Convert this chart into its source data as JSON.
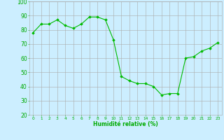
{
  "x": [
    0,
    1,
    2,
    3,
    4,
    5,
    6,
    7,
    8,
    9,
    10,
    11,
    12,
    13,
    14,
    15,
    16,
    17,
    18,
    19,
    20,
    21,
    22,
    23
  ],
  "y": [
    78,
    84,
    84,
    87,
    83,
    81,
    84,
    89,
    89,
    87,
    73,
    47,
    44,
    42,
    42,
    40,
    34,
    35,
    35,
    60,
    61,
    65,
    67,
    71
  ],
  "line_color": "#00bb00",
  "marker_color": "#00bb00",
  "bg_color": "#cceeff",
  "grid_color": "#aaaaaa",
  "xlabel": "Humidité relative (%)",
  "xlabel_color": "#00aa00",
  "tick_color": "#00aa00",
  "ylim": [
    20,
    100
  ],
  "xlim_min": -0.5,
  "xlim_max": 23.5,
  "yticks": [
    20,
    30,
    40,
    50,
    60,
    70,
    80,
    90,
    100
  ],
  "xticks": [
    0,
    1,
    2,
    3,
    4,
    5,
    6,
    7,
    8,
    9,
    10,
    11,
    12,
    13,
    14,
    15,
    16,
    17,
    18,
    19,
    20,
    21,
    22,
    23
  ]
}
